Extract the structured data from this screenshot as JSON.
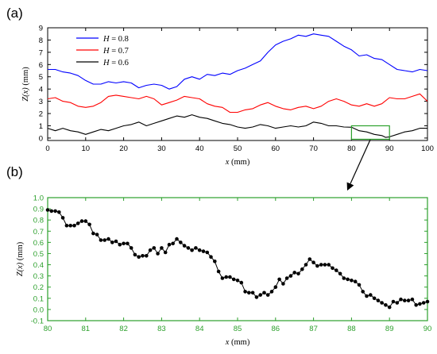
{
  "chart_data": [
    {
      "panel_label": "(a)",
      "type": "line",
      "xlabel_var": "x",
      "xlabel_unit": "(mm)",
      "ylabel_var": "Z(x)",
      "ylabel_unit": "(mm)",
      "xlim": [
        0,
        100
      ],
      "ylim": [
        -0.2,
        9
      ],
      "xticks": [
        0,
        10,
        20,
        30,
        40,
        50,
        60,
        70,
        80,
        90,
        100
      ],
      "yticks": [
        0,
        1,
        2,
        3,
        4,
        5,
        6,
        7,
        8,
        9
      ],
      "legend_position": "top-left",
      "inset_box": {
        "x": [
          80,
          90
        ],
        "y": [
          -0.1,
          1.0
        ],
        "color": "#2ca02c"
      },
      "series": [
        {
          "name": "H = 0.8",
          "legend_var": "H",
          "legend_value": "= 0.8",
          "color": "#0000ff",
          "points": [
            [
              0,
              5.6
            ],
            [
              2,
              5.6
            ],
            [
              4,
              5.4
            ],
            [
              6,
              5.3
            ],
            [
              8,
              5.1
            ],
            [
              10,
              4.7
            ],
            [
              12,
              4.4
            ],
            [
              14,
              4.4
            ],
            [
              16,
              4.6
            ],
            [
              18,
              4.5
            ],
            [
              20,
              4.6
            ],
            [
              22,
              4.5
            ],
            [
              24,
              4.1
            ],
            [
              26,
              4.3
            ],
            [
              28,
              4.4
            ],
            [
              30,
              4.3
            ],
            [
              32,
              4.0
            ],
            [
              34,
              4.2
            ],
            [
              36,
              4.8
            ],
            [
              38,
              5.0
            ],
            [
              40,
              4.8
            ],
            [
              42,
              5.2
            ],
            [
              44,
              5.1
            ],
            [
              46,
              5.3
            ],
            [
              48,
              5.2
            ],
            [
              50,
              5.5
            ],
            [
              52,
              5.7
            ],
            [
              54,
              6.0
            ],
            [
              56,
              6.3
            ],
            [
              58,
              7.0
            ],
            [
              60,
              7.6
            ],
            [
              62,
              7.9
            ],
            [
              64,
              8.1
            ],
            [
              66,
              8.4
            ],
            [
              68,
              8.3
            ],
            [
              70,
              8.5
            ],
            [
              72,
              8.4
            ],
            [
              74,
              8.3
            ],
            [
              76,
              7.9
            ],
            [
              78,
              7.5
            ],
            [
              80,
              7.2
            ],
            [
              82,
              6.7
            ],
            [
              84,
              6.8
            ],
            [
              86,
              6.5
            ],
            [
              88,
              6.4
            ],
            [
              90,
              6.0
            ],
            [
              92,
              5.6
            ],
            [
              94,
              5.5
            ],
            [
              96,
              5.4
            ],
            [
              98,
              5.6
            ],
            [
              100,
              5.5
            ]
          ]
        },
        {
          "name": "H = 0.7",
          "legend_var": "H",
          "legend_value": "= 0.7",
          "color": "#ff0000",
          "points": [
            [
              0,
              3.2
            ],
            [
              2,
              3.3
            ],
            [
              4,
              3.0
            ],
            [
              6,
              2.9
            ],
            [
              8,
              2.6
            ],
            [
              10,
              2.5
            ],
            [
              12,
              2.6
            ],
            [
              14,
              2.9
            ],
            [
              16,
              3.4
            ],
            [
              18,
              3.5
            ],
            [
              20,
              3.4
            ],
            [
              22,
              3.3
            ],
            [
              24,
              3.2
            ],
            [
              26,
              3.4
            ],
            [
              28,
              3.2
            ],
            [
              30,
              2.7
            ],
            [
              32,
              2.9
            ],
            [
              34,
              3.1
            ],
            [
              36,
              3.4
            ],
            [
              38,
              3.3
            ],
            [
              40,
              3.2
            ],
            [
              42,
              2.8
            ],
            [
              44,
              2.6
            ],
            [
              46,
              2.5
            ],
            [
              48,
              2.1
            ],
            [
              50,
              2.1
            ],
            [
              52,
              2.3
            ],
            [
              54,
              2.4
            ],
            [
              56,
              2.7
            ],
            [
              58,
              2.9
            ],
            [
              60,
              2.6
            ],
            [
              62,
              2.4
            ],
            [
              64,
              2.3
            ],
            [
              66,
              2.5
            ],
            [
              68,
              2.6
            ],
            [
              70,
              2.4
            ],
            [
              72,
              2.6
            ],
            [
              74,
              3.0
            ],
            [
              76,
              3.2
            ],
            [
              78,
              3.0
            ],
            [
              80,
              2.7
            ],
            [
              82,
              2.6
            ],
            [
              84,
              2.8
            ],
            [
              86,
              2.6
            ],
            [
              88,
              2.8
            ],
            [
              90,
              3.3
            ],
            [
              92,
              3.2
            ],
            [
              94,
              3.2
            ],
            [
              96,
              3.4
            ],
            [
              98,
              3.6
            ],
            [
              100,
              3.0
            ]
          ]
        },
        {
          "name": "H = 0.6",
          "legend_var": "H",
          "legend_value": "= 0.6",
          "color": "#000000",
          "points": [
            [
              0,
              0.8
            ],
            [
              2,
              0.6
            ],
            [
              4,
              0.8
            ],
            [
              6,
              0.6
            ],
            [
              8,
              0.5
            ],
            [
              10,
              0.3
            ],
            [
              12,
              0.5
            ],
            [
              14,
              0.7
            ],
            [
              16,
              0.6
            ],
            [
              18,
              0.8
            ],
            [
              20,
              1.0
            ],
            [
              22,
              1.1
            ],
            [
              24,
              1.3
            ],
            [
              26,
              1.0
            ],
            [
              28,
              1.2
            ],
            [
              30,
              1.4
            ],
            [
              32,
              1.6
            ],
            [
              34,
              1.8
            ],
            [
              36,
              1.7
            ],
            [
              38,
              1.9
            ],
            [
              40,
              1.7
            ],
            [
              42,
              1.6
            ],
            [
              44,
              1.4
            ],
            [
              46,
              1.2
            ],
            [
              48,
              1.1
            ],
            [
              50,
              0.9
            ],
            [
              52,
              0.8
            ],
            [
              54,
              0.9
            ],
            [
              56,
              1.1
            ],
            [
              58,
              1.0
            ],
            [
              60,
              0.8
            ],
            [
              62,
              0.9
            ],
            [
              64,
              1.0
            ],
            [
              66,
              0.9
            ],
            [
              68,
              1.0
            ],
            [
              70,
              1.3
            ],
            [
              72,
              1.2
            ],
            [
              74,
              1.0
            ],
            [
              76,
              1.0
            ],
            [
              78,
              0.9
            ],
            [
              80,
              0.88
            ],
            [
              82,
              0.6
            ],
            [
              84,
              0.5
            ],
            [
              86,
              0.3
            ],
            [
              88,
              0.2
            ],
            [
              89,
              0.05
            ],
            [
              90,
              0.1
            ],
            [
              92,
              0.3
            ],
            [
              94,
              0.5
            ],
            [
              96,
              0.6
            ],
            [
              98,
              0.8
            ],
            [
              100,
              0.8
            ]
          ]
        }
      ]
    },
    {
      "panel_label": "(b)",
      "type": "scatter",
      "xlabel_var": "x",
      "xlabel_unit": "(mm)",
      "ylabel_var": "Z(x)",
      "ylabel_unit": "(mm)",
      "xlim": [
        80,
        90
      ],
      "ylim": [
        -0.1,
        1.0
      ],
      "xticks": [
        80,
        81,
        82,
        83,
        84,
        85,
        86,
        87,
        88,
        89,
        90
      ],
      "yticks": [
        "-0.1",
        "0.0",
        "0.1",
        "0.2",
        "0.3",
        "0.4",
        "0.5",
        "0.6",
        "0.7",
        "0.8",
        "0.9",
        "1.0"
      ],
      "frame_color": "#2ca02c",
      "tick_label_color": "#2ca02c",
      "series": [
        {
          "color": "#000000",
          "x": [
            80.0,
            80.1,
            80.2,
            80.3,
            80.4,
            80.5,
            80.6,
            80.7,
            80.8,
            80.9,
            81.0,
            81.1,
            81.2,
            81.3,
            81.4,
            81.5,
            81.6,
            81.7,
            81.8,
            81.9,
            82.0,
            82.1,
            82.2,
            82.3,
            82.4,
            82.5,
            82.6,
            82.7,
            82.8,
            82.9,
            83.0,
            83.1,
            83.2,
            83.3,
            83.4,
            83.5,
            83.6,
            83.7,
            83.8,
            83.9,
            84.0,
            84.1,
            84.2,
            84.3,
            84.4,
            84.5,
            84.6,
            84.7,
            84.8,
            84.9,
            85.0,
            85.1,
            85.2,
            85.3,
            85.4,
            85.5,
            85.6,
            85.7,
            85.8,
            85.9,
            86.0,
            86.1,
            86.2,
            86.3,
            86.4,
            86.5,
            86.6,
            86.7,
            86.8,
            86.9,
            87.0,
            87.1,
            87.2,
            87.3,
            87.4,
            87.5,
            87.6,
            87.7,
            87.8,
            87.9,
            88.0,
            88.1,
            88.2,
            88.3,
            88.4,
            88.5,
            88.6,
            88.7,
            88.8,
            88.9,
            89.0,
            89.1,
            89.2,
            89.3,
            89.4,
            89.5,
            89.6,
            89.7,
            89.8,
            89.9,
            90.0
          ],
          "y": [
            0.89,
            0.88,
            0.88,
            0.87,
            0.82,
            0.75,
            0.75,
            0.75,
            0.77,
            0.79,
            0.79,
            0.76,
            0.68,
            0.67,
            0.62,
            0.62,
            0.63,
            0.6,
            0.61,
            0.58,
            0.59,
            0.59,
            0.55,
            0.49,
            0.47,
            0.48,
            0.48,
            0.53,
            0.55,
            0.5,
            0.55,
            0.51,
            0.58,
            0.59,
            0.63,
            0.6,
            0.57,
            0.55,
            0.53,
            0.55,
            0.53,
            0.52,
            0.51,
            0.47,
            0.43,
            0.34,
            0.28,
            0.29,
            0.29,
            0.27,
            0.26,
            0.24,
            0.16,
            0.15,
            0.15,
            0.11,
            0.13,
            0.15,
            0.13,
            0.16,
            0.2,
            0.27,
            0.23,
            0.28,
            0.3,
            0.33,
            0.32,
            0.36,
            0.4,
            0.45,
            0.42,
            0.39,
            0.4,
            0.4,
            0.4,
            0.37,
            0.35,
            0.32,
            0.28,
            0.27,
            0.26,
            0.25,
            0.22,
            0.16,
            0.12,
            0.13,
            0.1,
            0.08,
            0.06,
            0.04,
            0.02,
            0.07,
            0.06,
            0.09,
            0.08,
            0.08,
            0.09,
            0.04,
            0.05,
            0.06,
            0.07
          ]
        }
      ]
    }
  ]
}
